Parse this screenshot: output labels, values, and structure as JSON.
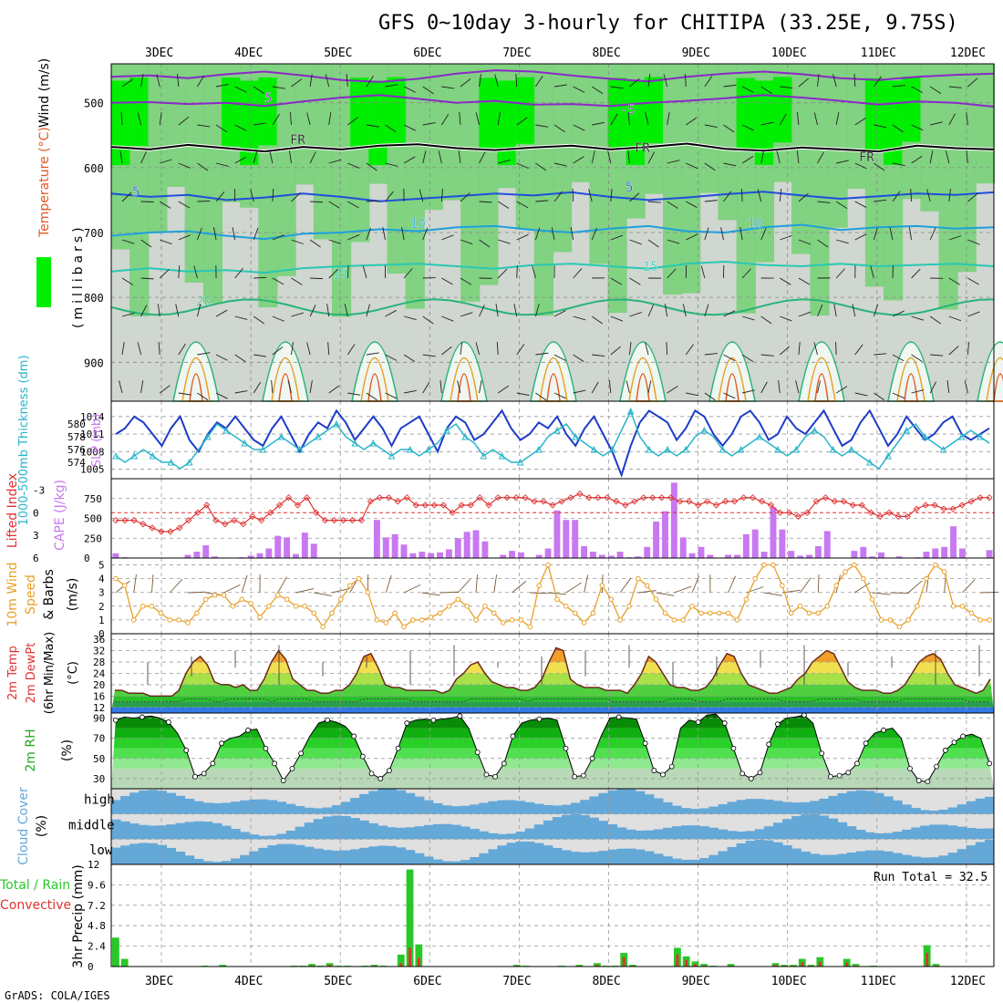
{
  "title": "GFS 0~10day 3-hourly for CHITIPA (33.25E, 9.75S)",
  "footer": "GrADS: COLA/IGES",
  "dates": [
    "3DEC",
    "4DEC",
    "5DEC",
    "6DEC",
    "7DEC",
    "8DEC",
    "9DEC",
    "10DEC",
    "11DEC",
    "12DEC"
  ],
  "colors": {
    "rh_light": "#d0d6d0",
    "rh_mid": "#78d278",
    "rh_high": "#00ee00",
    "temp_m5": "#8c28c8",
    "temp_fr": "#000000",
    "temp_5": "#1e50dc",
    "temp_10": "#1ea0dc",
    "temp_15": "#28c8b4",
    "temp_20": "#28b478",
    "temp_25": "#e8a028",
    "temp_30": "#e05a28",
    "slp": "#1e3cc8",
    "thickness": "#28b4c8",
    "lifted": "#e03232",
    "cape": "#c878f0",
    "wind_speed": "#e8a028",
    "barb": "#7a5a3a",
    "cloud": "#64a8d8",
    "precip_total": "#28c828",
    "precip_conv": "#e03232"
  },
  "chart_data": [
    {
      "type": "heatmap",
      "panel": "upper_air",
      "ylabel_temp": "Temperature (°C)",
      "ylabel_wind": "Wind (m/s)",
      "ylabel_rh": "RH (%)",
      "ylabel_p": "(millibars)",
      "yticks": [
        "500",
        "600",
        "700",
        "800",
        "900"
      ],
      "ylim": [
        440,
        960
      ],
      "contour_labels": [
        "5",
        "-5",
        "FR",
        "FR",
        "FR",
        "5",
        "5",
        "10",
        "10",
        "15",
        "15",
        "20"
      ],
      "contours": [
        {
          "label": "-5",
          "p": [
            500,
            499,
            502,
            500,
            505,
            498,
            492,
            488,
            494,
            500,
            497,
            503,
            502,
            505,
            500,
            497,
            493,
            488,
            492,
            497,
            503,
            498,
            500,
            506
          ]
        },
        {
          "label": "-5b",
          "p": [
            460,
            458,
            462,
            456,
            452,
            458,
            465,
            468,
            463,
            455,
            450,
            452,
            458,
            463,
            467,
            460,
            455,
            452,
            456,
            462,
            465,
            460,
            457,
            455
          ]
        },
        {
          "label": "FR",
          "p": [
            568,
            572,
            565,
            570,
            575,
            568,
            572,
            566,
            564,
            570,
            573,
            569,
            566,
            572,
            568,
            563,
            571,
            574,
            569,
            572,
            575,
            566,
            570,
            572
          ]
        },
        {
          "label": "5",
          "p": [
            640,
            645,
            642,
            650,
            646,
            640,
            645,
            652,
            648,
            644,
            640,
            643,
            638,
            645,
            650,
            646,
            641,
            637,
            643,
            648,
            644,
            640,
            642,
            638
          ]
        },
        {
          "label": "10",
          "p": [
            705,
            700,
            698,
            705,
            710,
            702,
            700,
            695,
            698,
            692,
            690,
            696,
            700,
            694,
            690,
            698,
            700,
            692,
            688,
            696,
            692,
            690,
            694,
            692
          ]
        },
        {
          "label": "15",
          "p": [
            760,
            755,
            760,
            758,
            762,
            755,
            752,
            750,
            748,
            752,
            756,
            750,
            748,
            752,
            756,
            748,
            745,
            750,
            752,
            748,
            752,
            750,
            748,
            752
          ]
        }
      ],
      "fronts": "FR"
    },
    {
      "type": "line",
      "panel": "slp_thickness",
      "ylabel_left": "1000-500mb Thickness (dm)",
      "ylabel_right": "SLP (mb)",
      "left_ticks": [
        "580",
        "578",
        "576",
        "574"
      ],
      "right_ticks": [
        "1014",
        "1011",
        "1008",
        "1005"
      ],
      "slp_range": [
        1004,
        1016
      ],
      "slp": [
        1011,
        1012,
        1014,
        1013,
        1011,
        1009,
        1012,
        1014,
        1010,
        1008,
        1011,
        1013,
        1012,
        1014,
        1012,
        1010,
        1009,
        1012,
        1014,
        1011,
        1008,
        1011,
        1013,
        1012,
        1015,
        1013,
        1010,
        1012,
        1014,
        1012,
        1009,
        1012,
        1013,
        1014,
        1011,
        1008,
        1012,
        1014,
        1013,
        1010,
        1011,
        1013,
        1015,
        1012,
        1010,
        1011,
        1013,
        1012,
        1014,
        1011,
        1009,
        1012,
        1014,
        1011,
        1008,
        1004,
        1009,
        1013,
        1015,
        1014,
        1013,
        1010,
        1012,
        1015,
        1014,
        1011,
        1009,
        1011,
        1014,
        1015,
        1013,
        1010,
        1011,
        1014,
        1012,
        1011,
        1013,
        1015,
        1012,
        1009,
        1010,
        1013,
        1015,
        1012,
        1009,
        1011,
        1014,
        1012,
        1010,
        1011,
        1013,
        1014,
        1011,
        1010,
        1011,
        1012
      ],
      "thickness": [
        575,
        574,
        575,
        576,
        575,
        574,
        574,
        573,
        574,
        576,
        578,
        580,
        579,
        578,
        577,
        576,
        576,
        577,
        578,
        577,
        576,
        577,
        578,
        579,
        580,
        578,
        577,
        576,
        577,
        576,
        575,
        576,
        576,
        575,
        576,
        577,
        579,
        580,
        578,
        577,
        575,
        576,
        575,
        574,
        574,
        575,
        576,
        578,
        579,
        580,
        578,
        577,
        576,
        575,
        576,
        579,
        582,
        578,
        576,
        575,
        576,
        575,
        576,
        578,
        579,
        578,
        576,
        575,
        576,
        577,
        578,
        577,
        576,
        575,
        576,
        578,
        579,
        578,
        576,
        575,
        576,
        575,
        574,
        573,
        575,
        577,
        579,
        580,
        578,
        577,
        576,
        577,
        578,
        579,
        578,
        577
      ]
    },
    {
      "type": "bar",
      "panel": "lifted_cape",
      "ylabel_left": "Lifted Index",
      "ylabel_right": "CAPE (J/kg)",
      "left_ticks": [
        "-3",
        "0",
        "3",
        "6"
      ],
      "right_ticks": [
        "750",
        "500",
        "250",
        "0"
      ],
      "cape_max": 1000,
      "cape": [
        60,
        10,
        5,
        0,
        0,
        0,
        0,
        5,
        40,
        80,
        160,
        20,
        0,
        0,
        10,
        30,
        60,
        120,
        280,
        260,
        50,
        320,
        180,
        0,
        0,
        0,
        0,
        0,
        0,
        480,
        260,
        300,
        170,
        60,
        80,
        60,
        70,
        110,
        250,
        330,
        350,
        210,
        0,
        40,
        90,
        70,
        0,
        40,
        120,
        600,
        480,
        480,
        150,
        80,
        40,
        30,
        80,
        10,
        20,
        140,
        460,
        590,
        950,
        260,
        60,
        140,
        40,
        0,
        40,
        40,
        300,
        360,
        80,
        640,
        360,
        90,
        30,
        40,
        150,
        340,
        0,
        0,
        90,
        140,
        20,
        70,
        0,
        20,
        0,
        10,
        80,
        120,
        140,
        400,
        120,
        0,
        0,
        100
      ],
      "lifted": [
        1,
        1,
        1,
        1.5,
        2,
        2.5,
        2.5,
        2,
        1,
        0,
        -1,
        1,
        1.5,
        1,
        1.5,
        0.5,
        1,
        0,
        -1,
        -2,
        -1,
        -2,
        0,
        1,
        1,
        1,
        1,
        1,
        -1.5,
        -2,
        -2,
        -1.5,
        -2,
        -1,
        -1,
        -1,
        -1,
        0,
        -1,
        -1,
        -2,
        -1,
        -2,
        -2,
        -2,
        -2,
        -1.5,
        -1.5,
        -1,
        -1.5,
        -2,
        -2.5,
        -2,
        -2,
        -2,
        -1.5,
        -1,
        -1.5,
        -2,
        -2,
        -2,
        -2,
        -1.5,
        -1.5,
        -1,
        -1.5,
        -1,
        -1.5,
        -1.5,
        -2,
        -2,
        -1.5,
        -1,
        0,
        0,
        0.5,
        0,
        -1.5,
        -2,
        -1.5,
        -1.5,
        -1,
        -1,
        0,
        0.5,
        0,
        0.5,
        0.5,
        -0.5,
        -1,
        -1,
        -0.5,
        -0.5,
        -1,
        -1.5,
        -2,
        -2
      ]
    },
    {
      "type": "line",
      "panel": "wind10m",
      "ylabel": "10m Wind Speed & Barbs (m/s)",
      "yticks": [
        "5",
        "4",
        "3",
        "2",
        "1",
        "0"
      ],
      "ylim": [
        0,
        5.5
      ],
      "speed": [
        4,
        3.5,
        1,
        2,
        2,
        1.5,
        1,
        1,
        0.8,
        1.5,
        2.5,
        2.8,
        2.8,
        2,
        2.5,
        2.2,
        1.2,
        2,
        2.8,
        2.5,
        2,
        2,
        1.5,
        0.5,
        1.5,
        2.5,
        3.5,
        4,
        3,
        1,
        0.8,
        1.5,
        0.5,
        1,
        1,
        1.2,
        1.5,
        2,
        2.5,
        2,
        1,
        2,
        1.5,
        0.8,
        1,
        1,
        0.5,
        3.5,
        5,
        2.5,
        2,
        1.5,
        0.8,
        1.5,
        3.5,
        2.5,
        1,
        2,
        4,
        3.5,
        2.5,
        1.5,
        1,
        1,
        2,
        1.5,
        1.5,
        1.5,
        1.5,
        1,
        2.5,
        4,
        5,
        5,
        3.5,
        1.5,
        2,
        1.5,
        1.5,
        2,
        3.5,
        4.5,
        5,
        4,
        2.5,
        1,
        1,
        0.5,
        1,
        2,
        4,
        5,
        4.5,
        2,
        2,
        1.5,
        1,
        1
      ]
    },
    {
      "type": "area",
      "panel": "temperature2m",
      "ylabel": "2m Temp 2m DewPt (6hr Min/Max) (°C)",
      "yticks": [
        "36",
        "32",
        "28",
        "24",
        "20",
        "16",
        "12"
      ],
      "ylim": [
        10,
        38
      ],
      "temp": [
        18,
        18,
        17,
        17,
        17,
        16,
        16,
        16,
        16,
        18,
        24,
        28,
        30,
        27,
        21,
        20,
        20,
        19,
        20,
        18,
        18,
        22,
        28,
        32,
        29,
        22,
        20,
        18,
        18,
        17,
        17,
        18,
        18,
        20,
        24,
        30,
        31,
        26,
        20,
        19,
        19,
        18,
        18,
        18,
        18,
        18,
        17,
        18,
        22,
        24,
        27,
        28,
        24,
        21,
        20,
        19,
        19,
        18,
        18,
        19,
        22,
        28,
        33,
        32,
        22,
        20,
        19,
        19,
        19,
        18,
        18,
        18,
        17,
        20,
        24,
        30,
        28,
        24,
        20,
        19,
        19,
        18,
        18,
        19,
        22,
        27,
        31,
        30,
        24,
        20,
        19,
        18,
        17,
        17,
        18,
        19,
        22,
        24,
        28,
        30,
        32,
        31,
        26,
        21,
        19,
        18,
        18,
        18,
        17,
        17,
        18,
        20,
        24,
        28,
        30,
        31,
        29,
        24,
        20,
        19,
        18,
        17,
        18,
        22
      ],
      "dewpt": [
        14,
        14,
        14,
        14,
        14,
        14,
        14,
        14,
        14,
        14,
        15,
        15,
        15,
        15,
        14,
        14,
        15,
        15,
        15,
        15,
        15,
        15,
        14,
        15,
        15,
        15,
        15,
        15,
        14,
        14,
        14,
        14,
        14,
        14,
        14,
        15,
        15,
        15,
        15,
        15,
        15,
        15,
        14,
        14,
        14,
        14,
        14,
        14,
        14,
        14,
        15,
        15,
        15,
        15,
        15,
        15,
        15,
        15,
        14,
        15,
        15,
        15,
        15,
        15,
        15,
        15,
        15,
        15,
        15,
        15,
        14,
        14,
        14,
        14,
        14,
        14,
        14,
        14,
        15,
        15,
        15,
        15,
        14,
        14,
        14,
        14,
        15,
        15,
        15,
        15,
        15,
        15,
        15,
        15,
        14,
        14,
        14,
        14,
        14,
        15,
        15,
        15,
        15,
        15,
        15,
        14,
        14,
        14,
        14,
        14,
        14,
        15,
        15,
        15,
        15,
        15,
        15,
        15,
        15,
        15,
        14,
        14,
        14,
        14
      ]
    },
    {
      "type": "area",
      "panel": "rh2m",
      "ylabel": "2m RH (%)",
      "yticks": [
        "90",
        "70",
        "50",
        "30"
      ],
      "ylim": [
        20,
        95
      ],
      "rh": [
        88,
        91,
        90,
        91,
        92,
        90,
        86,
        75,
        58,
        32,
        35,
        45,
        65,
        70,
        72,
        78,
        79,
        60,
        45,
        28,
        40,
        55,
        72,
        85,
        88,
        86,
        82,
        72,
        52,
        35,
        30,
        38,
        60,
        85,
        88,
        89,
        88,
        89,
        90,
        92,
        80,
        56,
        34,
        32,
        45,
        72,
        85,
        88,
        89,
        90,
        88,
        60,
        32,
        33,
        50,
        72,
        90,
        91,
        90,
        89,
        65,
        38,
        34,
        42,
        80,
        88,
        86,
        93,
        94,
        85,
        60,
        35,
        30,
        36,
        64,
        84,
        90,
        91,
        93,
        85,
        55,
        32,
        33,
        36,
        45,
        65,
        75,
        78,
        80,
        70,
        40,
        28,
        27,
        42,
        58,
        66,
        72,
        74,
        70,
        45
      ]
    },
    {
      "type": "heatmap",
      "panel": "cloud",
      "ylabel": "Cloud Cover (%)",
      "levels": [
        "high",
        "middle",
        "low"
      ]
    },
    {
      "type": "bar",
      "panel": "precip",
      "ylabel": "3hr Precip (mm)",
      "series_labels": [
        "Total / Rain",
        "Convective"
      ],
      "yticks": [
        "12",
        "9.6",
        "7.2",
        "4.8",
        "2.4",
        "0"
      ],
      "ylim": [
        0,
        12
      ],
      "run_total": "Run Total = 32.5",
      "total": [
        3.4,
        0.9,
        0,
        0,
        0,
        0,
        0,
        0,
        0,
        0,
        0.1,
        0,
        0.2,
        0,
        0,
        0,
        0,
        0,
        0,
        0,
        0.1,
        0.1,
        0.3,
        0.1,
        0.4,
        0.1,
        0.1,
        0,
        0.1,
        0.2,
        0.1,
        0,
        1.4,
        11.4,
        2.6,
        0,
        0,
        0,
        0,
        0,
        0,
        0,
        0,
        0,
        0,
        0.2,
        0.1,
        0,
        0,
        0,
        0.1,
        0,
        0.2,
        0,
        0.4,
        0.1,
        0.1,
        1.6,
        0.2,
        0,
        0,
        0,
        0,
        2.2,
        1.2,
        0.6,
        0.3,
        0.1,
        0,
        0.3,
        0,
        0,
        0,
        0,
        0.4,
        0.2,
        0.2,
        0.9,
        0.2,
        1.1,
        0,
        0,
        0.9,
        0.3,
        0,
        0.1,
        0,
        0,
        0,
        0,
        0,
        2.5,
        0.3,
        0,
        0,
        0,
        0,
        0,
        0
      ],
      "conv": [
        0,
        0,
        0,
        0,
        0,
        0,
        0,
        0,
        0,
        0,
        0,
        0,
        0,
        0,
        0,
        0,
        0,
        0,
        0,
        0,
        0,
        0,
        0.1,
        0,
        0.2,
        0,
        0,
        0,
        0,
        0.1,
        0,
        0,
        0.4,
        2.2,
        1.0,
        0,
        0,
        0,
        0,
        0,
        0,
        0,
        0,
        0,
        0,
        0.1,
        0,
        0,
        0,
        0,
        0,
        0,
        0.1,
        0,
        0.2,
        0,
        0,
        1.1,
        0.1,
        0,
        0,
        0,
        0,
        1.4,
        0.8,
        0.3,
        0.1,
        0,
        0,
        0.1,
        0,
        0,
        0,
        0,
        0.2,
        0.1,
        0.1,
        0.5,
        0.1,
        0.6,
        0,
        0,
        0.5,
        0.1,
        0,
        0,
        0,
        0,
        0,
        0,
        0,
        1.6,
        0.1,
        0,
        0,
        0,
        0,
        0,
        0
      ]
    }
  ]
}
